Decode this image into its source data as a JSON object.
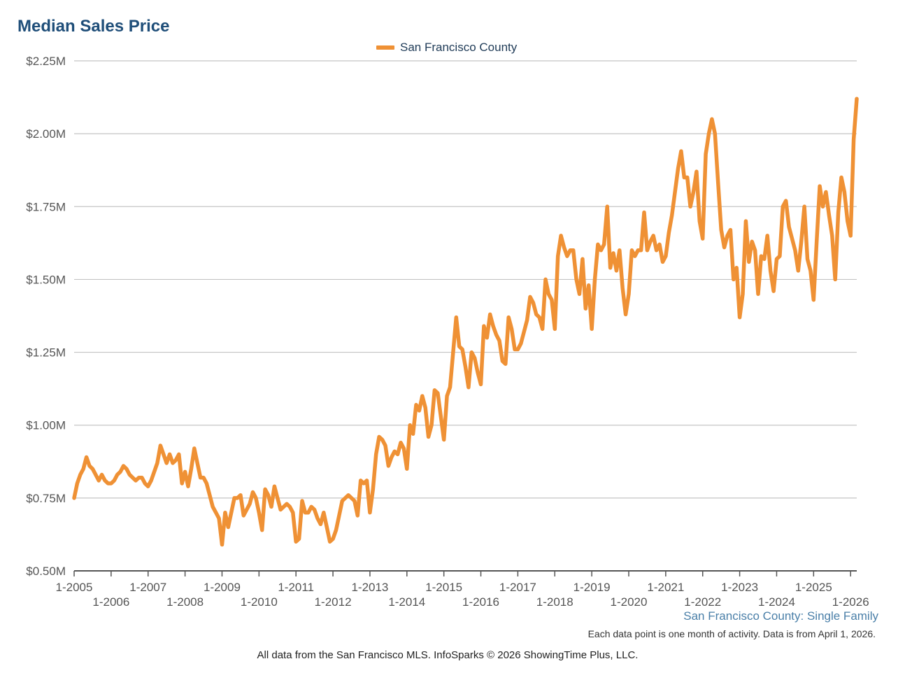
{
  "chart_data": {
    "type": "line",
    "title": "Median Sales Price",
    "subtitle": "San Francisco County: Single Family",
    "note": "Each data point is one month of activity. Data is from April 1, 2026.",
    "footer": "All data from the San Francisco MLS. InfoSparks © 2026 ShowingTime Plus, LLC.",
    "ylabel": "",
    "xlabel": "",
    "ylim": [
      0.5,
      2.25
    ],
    "y_ticks": [
      {
        "value": 0.5,
        "label": "$0.50M"
      },
      {
        "value": 0.75,
        "label": "$0.75M"
      },
      {
        "value": 1.0,
        "label": "$1.00M"
      },
      {
        "value": 1.25,
        "label": "$1.25M"
      },
      {
        "value": 1.5,
        "label": "$1.50M"
      },
      {
        "value": 1.75,
        "label": "$1.75M"
      },
      {
        "value": 2.0,
        "label": "$2.00M"
      },
      {
        "value": 2.25,
        "label": "$2.25M"
      }
    ],
    "x_range": [
      "2005-01",
      "2026-03"
    ],
    "x_ticks_row1": [
      "1-2005",
      "1-2007",
      "1-2009",
      "1-2011",
      "1-2013",
      "1-2015",
      "1-2017",
      "1-2019",
      "1-2021",
      "1-2023",
      "1-2025"
    ],
    "x_ticks_row2": [
      "1-2006",
      "1-2008",
      "1-2010",
      "1-2012",
      "1-2014",
      "1-2016",
      "1-2018",
      "1-2020",
      "1-2022",
      "1-2024",
      "1-2026"
    ],
    "grid": true,
    "legend_position": "top-center",
    "series": [
      {
        "name": "San Francisco County",
        "color": "#ef9135",
        "start": "2005-01",
        "values": [
          0.75,
          0.8,
          0.83,
          0.85,
          0.89,
          0.86,
          0.85,
          0.83,
          0.81,
          0.83,
          0.81,
          0.8,
          0.8,
          0.81,
          0.83,
          0.84,
          0.86,
          0.85,
          0.83,
          0.82,
          0.81,
          0.82,
          0.82,
          0.8,
          0.79,
          0.81,
          0.84,
          0.87,
          0.93,
          0.9,
          0.87,
          0.9,
          0.87,
          0.88,
          0.9,
          0.8,
          0.84,
          0.79,
          0.85,
          0.92,
          0.87,
          0.82,
          0.82,
          0.8,
          0.76,
          0.72,
          0.7,
          0.68,
          0.59,
          0.7,
          0.65,
          0.7,
          0.75,
          0.75,
          0.76,
          0.69,
          0.71,
          0.73,
          0.77,
          0.75,
          0.7,
          0.64,
          0.78,
          0.76,
          0.72,
          0.79,
          0.75,
          0.71,
          0.72,
          0.73,
          0.72,
          0.7,
          0.6,
          0.61,
          0.74,
          0.7,
          0.7,
          0.72,
          0.71,
          0.68,
          0.66,
          0.7,
          0.65,
          0.6,
          0.61,
          0.64,
          0.69,
          0.74,
          0.75,
          0.76,
          0.75,
          0.74,
          0.69,
          0.81,
          0.8,
          0.81,
          0.7,
          0.78,
          0.9,
          0.96,
          0.95,
          0.93,
          0.86,
          0.89,
          0.91,
          0.9,
          0.94,
          0.92,
          0.85,
          1.0,
          0.97,
          1.07,
          1.05,
          1.1,
          1.06,
          0.96,
          1.0,
          1.12,
          1.11,
          1.03,
          0.95,
          1.1,
          1.13,
          1.25,
          1.37,
          1.27,
          1.26,
          1.2,
          1.13,
          1.25,
          1.23,
          1.18,
          1.14,
          1.34,
          1.3,
          1.38,
          1.34,
          1.31,
          1.29,
          1.22,
          1.21,
          1.37,
          1.33,
          1.26,
          1.26,
          1.28,
          1.32,
          1.36,
          1.44,
          1.42,
          1.38,
          1.37,
          1.33,
          1.5,
          1.45,
          1.43,
          1.33,
          1.58,
          1.65,
          1.61,
          1.58,
          1.6,
          1.6,
          1.5,
          1.45,
          1.57,
          1.4,
          1.48,
          1.33,
          1.5,
          1.62,
          1.6,
          1.62,
          1.75,
          1.54,
          1.59,
          1.53,
          1.6,
          1.47,
          1.38,
          1.45,
          1.6,
          1.58,
          1.6,
          1.6,
          1.73,
          1.6,
          1.63,
          1.65,
          1.6,
          1.62,
          1.56,
          1.58,
          1.66,
          1.72,
          1.8,
          1.88,
          1.94,
          1.85,
          1.85,
          1.75,
          1.8,
          1.87,
          1.7,
          1.64,
          1.93,
          2.0,
          2.05,
          2.0,
          1.83,
          1.67,
          1.61,
          1.65,
          1.67,
          1.5,
          1.54,
          1.37,
          1.45,
          1.7,
          1.56,
          1.63,
          1.6,
          1.45,
          1.58,
          1.57,
          1.65,
          1.53,
          1.46,
          1.57,
          1.58,
          1.75,
          1.77,
          1.68,
          1.64,
          1.6,
          1.53,
          1.63,
          1.75,
          1.57,
          1.53,
          1.43,
          1.63,
          1.82,
          1.75,
          1.8,
          1.72,
          1.65,
          1.5,
          1.73,
          1.85,
          1.8,
          1.7,
          1.65,
          1.98,
          2.12
        ]
      }
    ]
  }
}
